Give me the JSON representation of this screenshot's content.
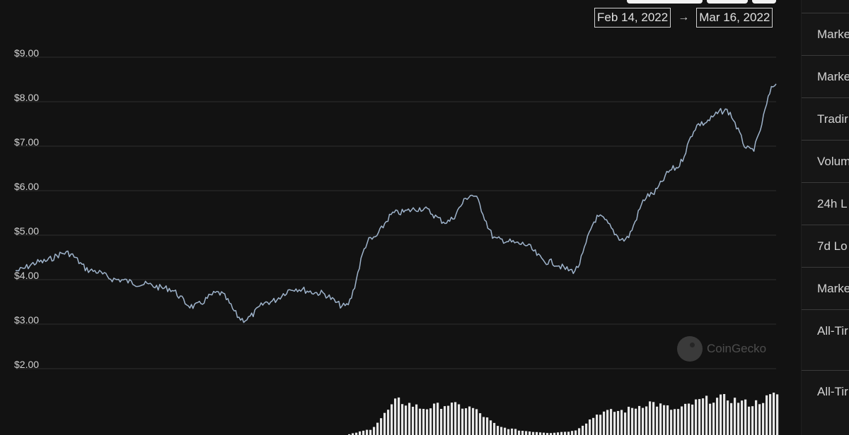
{
  "date_range": {
    "start": "Feb 14, 2022",
    "arrow": "→",
    "end": "Mar 16, 2022"
  },
  "watermark": {
    "text": "CoinGecko",
    "icon": "coingecko-logo-icon"
  },
  "side_panel": {
    "labels": [
      "Marke",
      "Marke",
      "Tradir",
      "Volum",
      "24h L",
      "7d Lo",
      "Marke",
      "All-Tir",
      "All-Tir"
    ]
  },
  "chart_data": {
    "type": "line",
    "title": "",
    "xlabel": "",
    "ylabel": "",
    "ylim": [
      1.5,
      9.5
    ],
    "yticks": [
      2,
      3,
      4,
      5,
      6,
      7,
      8,
      9
    ],
    "ytick_labels": [
      "$2.00",
      "$3.00",
      "$4.00",
      "$5.00",
      "$6.00",
      "$7.00",
      "$8.00",
      "$9.00"
    ],
    "grid": true,
    "x": [
      "2022-02-14",
      "2022-02-15",
      "2022-02-16",
      "2022-02-17",
      "2022-02-18",
      "2022-02-19",
      "2022-02-20",
      "2022-02-21",
      "2022-02-22",
      "2022-02-23",
      "2022-02-24",
      "2022-02-25",
      "2022-02-26",
      "2022-02-27",
      "2022-02-28",
      "2022-03-01",
      "2022-03-02",
      "2022-03-03",
      "2022-03-04",
      "2022-03-05",
      "2022-03-06",
      "2022-03-07",
      "2022-03-08",
      "2022-03-09",
      "2022-03-10",
      "2022-03-11",
      "2022-03-12",
      "2022-03-13",
      "2022-03-14",
      "2022-03-15",
      "2022-03-16"
    ],
    "series": [
      {
        "values": [
          4.2,
          4.4,
          4.6,
          4.2,
          4.0,
          3.9,
          3.8,
          3.4,
          3.7,
          3.1,
          3.5,
          3.8,
          3.7,
          3.4,
          4.9,
          5.5,
          5.6,
          5.3,
          5.9,
          4.9,
          4.8,
          4.4,
          4.2,
          5.4,
          4.9,
          5.9,
          6.5,
          7.5,
          7.8,
          6.9,
          8.4
        ]
      }
    ],
    "volume": {
      "values": [
        0,
        0,
        0,
        0,
        0,
        0,
        0,
        0,
        0,
        0,
        0,
        0,
        0,
        0,
        0.15,
        0.85,
        0.65,
        0.75,
        0.65,
        0.2,
        0.1,
        0.05,
        0.1,
        0.55,
        0.6,
        0.8,
        0.6,
        0.85,
        0.9,
        0.75,
        1.0
      ]
    }
  }
}
